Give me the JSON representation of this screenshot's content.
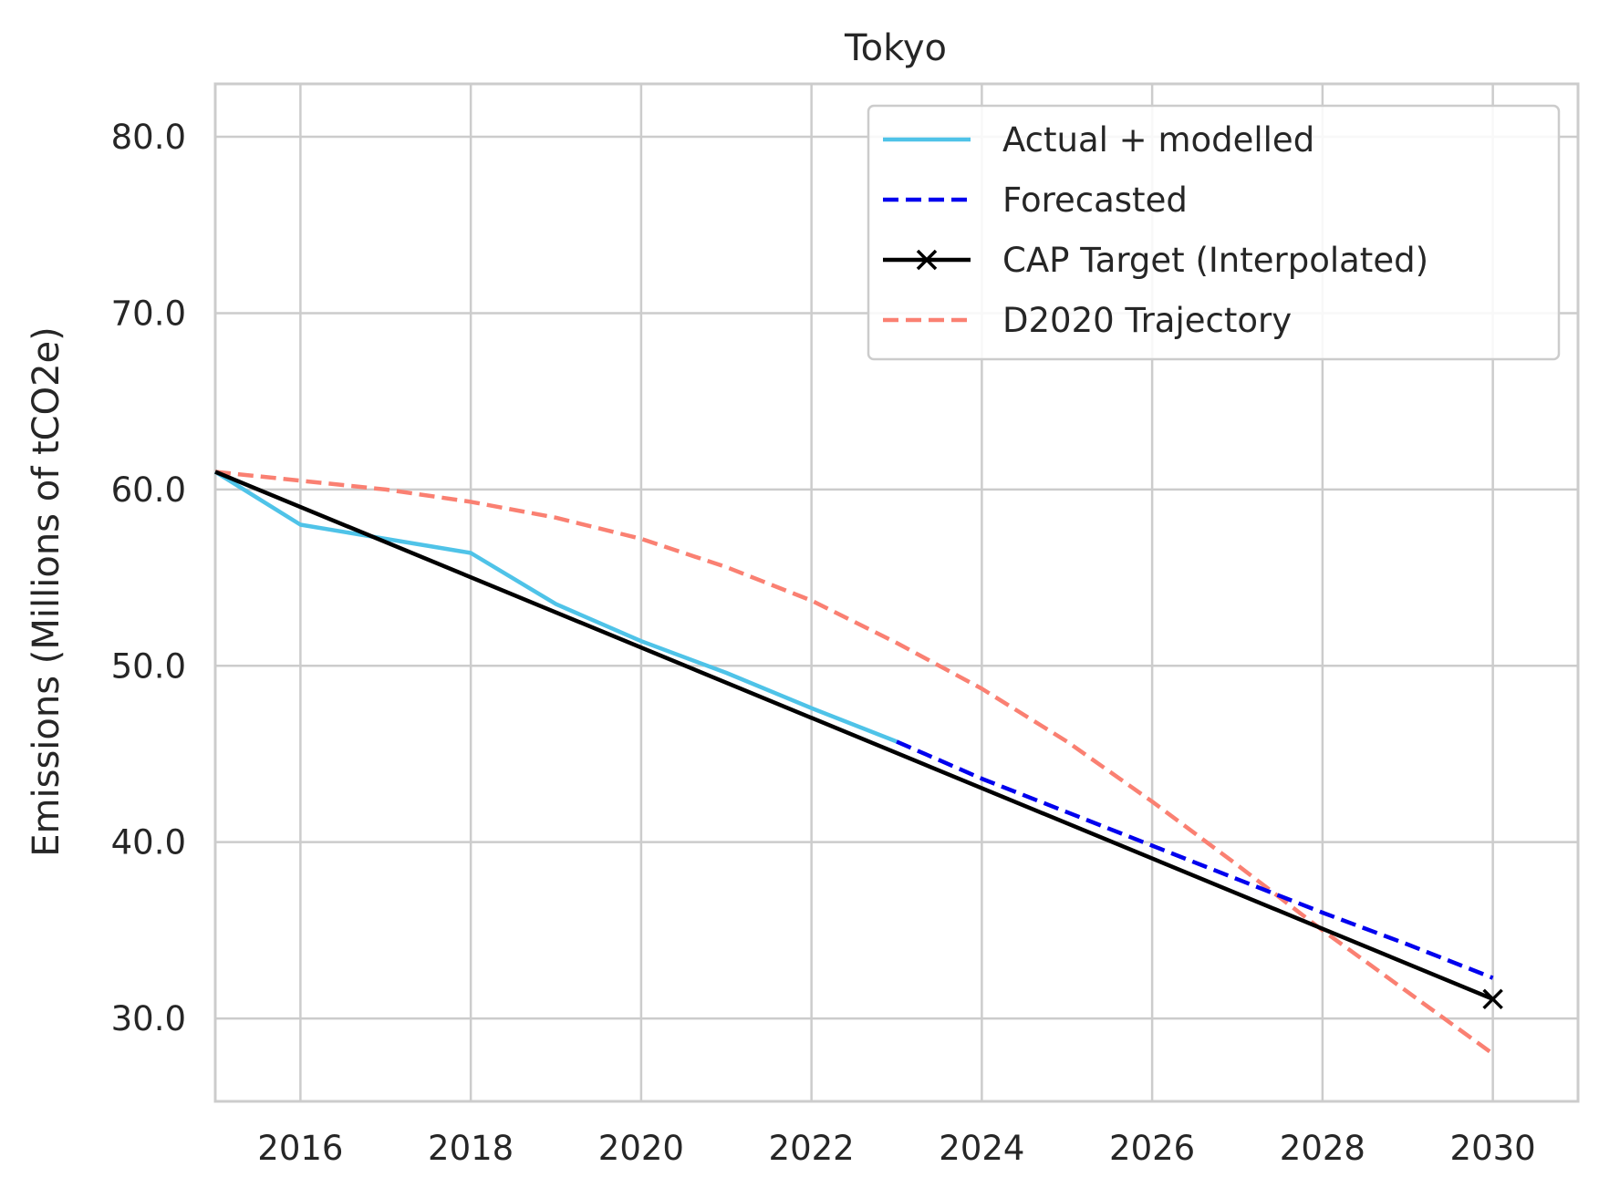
{
  "chart_data": {
    "type": "line",
    "title": "Tokyo",
    "xlabel": "",
    "ylabel": "Emissions (Millions of tCO2e)",
    "xlim": [
      2015,
      2031
    ],
    "ylim": [
      25.3,
      83.0
    ],
    "xticks": [
      2016,
      2018,
      2020,
      2022,
      2024,
      2026,
      2028,
      2030
    ],
    "yticks": [
      30.0,
      40.0,
      50.0,
      60.0,
      70.0,
      80.0
    ],
    "xtick_labels": [
      "2016",
      "2018",
      "2020",
      "2022",
      "2024",
      "2026",
      "2028",
      "2030"
    ],
    "ytick_labels": [
      "30.0",
      "40.0",
      "50.0",
      "60.0",
      "70.0",
      "80.0"
    ],
    "grid": true,
    "legend_position": "top-right",
    "series": [
      {
        "name": "Actual + modelled",
        "color": "#4fc3e8",
        "style": "solid",
        "x": [
          2015,
          2016,
          2017,
          2018,
          2019,
          2020,
          2021,
          2022,
          2023
        ],
        "y": [
          61.0,
          58.0,
          57.2,
          56.4,
          53.5,
          51.4,
          49.6,
          47.6,
          45.7
        ]
      },
      {
        "name": "Forecasted",
        "color": "#0000ee",
        "style": "dashed",
        "x": [
          2023,
          2024,
          2025,
          2026,
          2027,
          2028,
          2029,
          2030
        ],
        "y": [
          45.7,
          43.6,
          41.7,
          39.8,
          37.9,
          36.0,
          34.2,
          32.3
        ]
      },
      {
        "name": "CAP Target (Interpolated)",
        "color": "#000000",
        "style": "solid",
        "marker": "x",
        "x": [
          2015,
          2030
        ],
        "y": [
          61.0,
          31.1
        ]
      },
      {
        "name": "D2020 Trajectory",
        "color": "#fa8072",
        "style": "dashed",
        "x": [
          2015,
          2016,
          2017,
          2018,
          2019,
          2020,
          2021,
          2022,
          2023,
          2024,
          2025,
          2026,
          2027,
          2028,
          2029,
          2030
        ],
        "y": [
          61.0,
          60.5,
          60.0,
          59.3,
          58.4,
          57.2,
          55.6,
          53.7,
          51.3,
          48.7,
          45.7,
          42.3,
          38.7,
          35.0,
          31.5,
          28.0
        ]
      }
    ]
  }
}
